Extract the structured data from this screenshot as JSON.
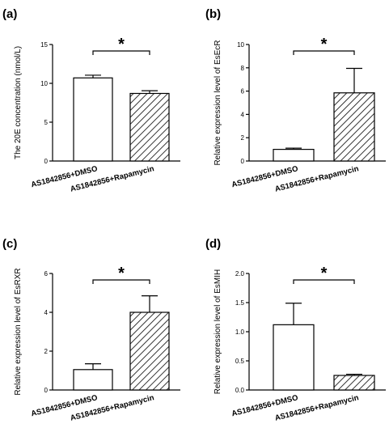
{
  "chart_data": [
    {
      "type": "bar",
      "panel_label": "(a)",
      "categories": [
        "AS1842856+DMSO",
        "AS1842856+Rapamycin"
      ],
      "values": [
        10.7,
        8.7
      ],
      "errors": [
        0.35,
        0.35
      ],
      "bar_styles": [
        "open",
        "hatched"
      ],
      "ylabel": "The 20E concentration (nmol/L)",
      "ylim": [
        0,
        15
      ],
      "yticks": [
        "0",
        "5",
        "10",
        "15"
      ],
      "significance": "*"
    },
    {
      "type": "bar",
      "panel_label": "(b)",
      "categories": [
        "AS1842856+DMSO",
        "AS1842856+Rapamycin"
      ],
      "values": [
        1.0,
        5.85
      ],
      "errors": [
        0.1,
        2.1
      ],
      "bar_styles": [
        "open",
        "hatched"
      ],
      "ylabel": "Relative expression level of EsEcR",
      "ylim": [
        0,
        10
      ],
      "yticks": [
        "0",
        "2",
        "4",
        "6",
        "8",
        "10"
      ],
      "significance": "*"
    },
    {
      "type": "bar",
      "panel_label": "(c)",
      "categories": [
        "AS1842856+DMSO",
        "AS1842856+Rapamycin"
      ],
      "values": [
        1.05,
        4.0
      ],
      "errors": [
        0.3,
        0.85
      ],
      "bar_styles": [
        "open",
        "hatched"
      ],
      "ylabel": "Relative expression level of EsRXR",
      "ylim": [
        0,
        6
      ],
      "yticks": [
        "0",
        "2",
        "4",
        "6"
      ],
      "significance": "*"
    },
    {
      "type": "bar",
      "panel_label": "(d)",
      "categories": [
        "AS1842856+DMSO",
        "AS1842856+Rapamycin"
      ],
      "values": [
        1.12,
        0.25
      ],
      "errors": [
        0.37,
        0.02
      ],
      "bar_styles": [
        "open",
        "hatched"
      ],
      "ylabel": "Relative expression level of EsMIH",
      "ylim": [
        0,
        2.0
      ],
      "yticks": [
        "0.0",
        "0.5",
        "1.0",
        "1.5",
        "2.0"
      ],
      "significance": "*"
    }
  ]
}
